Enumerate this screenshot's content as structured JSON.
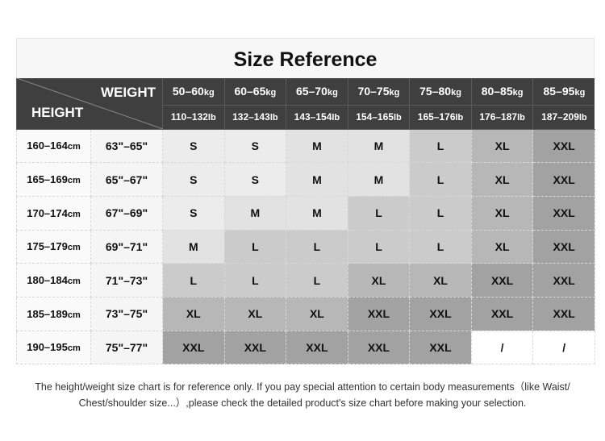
{
  "title": "Size Reference",
  "corner": {
    "weight": "WEIGHT",
    "height": "HEIGHT"
  },
  "weights_kg": [
    [
      "50–60",
      "kg"
    ],
    [
      "60–65",
      "kg"
    ],
    [
      "65–70",
      "kg"
    ],
    [
      "70–75",
      "kg"
    ],
    [
      "75–80",
      "kg"
    ],
    [
      "80–85",
      "kg"
    ],
    [
      "85–95",
      "kg"
    ]
  ],
  "weights_lb": [
    [
      "110–132",
      "lb"
    ],
    [
      "132–143",
      "lb"
    ],
    [
      "143–154",
      "lb"
    ],
    [
      "154–165",
      "lb"
    ],
    [
      "165–176",
      "lb"
    ],
    [
      "176–187",
      "lb"
    ],
    [
      "187–209",
      "lb"
    ]
  ],
  "rows": [
    {
      "cm": "160–164",
      "unit": "cm",
      "inch": "63\"–65\"",
      "sizes": [
        "S",
        "S",
        "M",
        "M",
        "L",
        "XL",
        "XXL"
      ]
    },
    {
      "cm": "165–169",
      "unit": "cm",
      "inch": "65\"–67\"",
      "sizes": [
        "S",
        "S",
        "M",
        "M",
        "L",
        "XL",
        "XXL"
      ]
    },
    {
      "cm": "170–174",
      "unit": "cm",
      "inch": "67\"–69\"",
      "sizes": [
        "S",
        "M",
        "M",
        "L",
        "L",
        "XL",
        "XXL"
      ]
    },
    {
      "cm": "175–179",
      "unit": "cm",
      "inch": "69\"–71\"",
      "sizes": [
        "M",
        "L",
        "L",
        "L",
        "L",
        "XL",
        "XXL"
      ]
    },
    {
      "cm": "180–184",
      "unit": "cm",
      "inch": "71\"–73\"",
      "sizes": [
        "L",
        "L",
        "L",
        "XL",
        "XL",
        "XXL",
        "XXL"
      ]
    },
    {
      "cm": "185–189",
      "unit": "cm",
      "inch": "73\"–75\"",
      "sizes": [
        "XL",
        "XL",
        "XL",
        "XXL",
        "XXL",
        "XXL",
        "XXL"
      ]
    },
    {
      "cm": "190–195",
      "unit": "cm",
      "inch": "75\"–77\"",
      "sizes": [
        "XXL",
        "XXL",
        "XXL",
        "XXL",
        "XXL",
        "/",
        "/"
      ]
    }
  ],
  "size_colors": {
    "S": "#ececec",
    "M": "#e2e2e2",
    "L": "#cbcbcb",
    "XL": "#b7b7b7",
    "XXL": "#a2a2a2",
    "/": "#ffffff"
  },
  "footer": [
    "The height/weight size chart is for reference only. If you pay special attention to certain body measurements（like Waist/",
    "Chest/shoulder size...）,please check the detailed product's size chart before making your selection."
  ]
}
